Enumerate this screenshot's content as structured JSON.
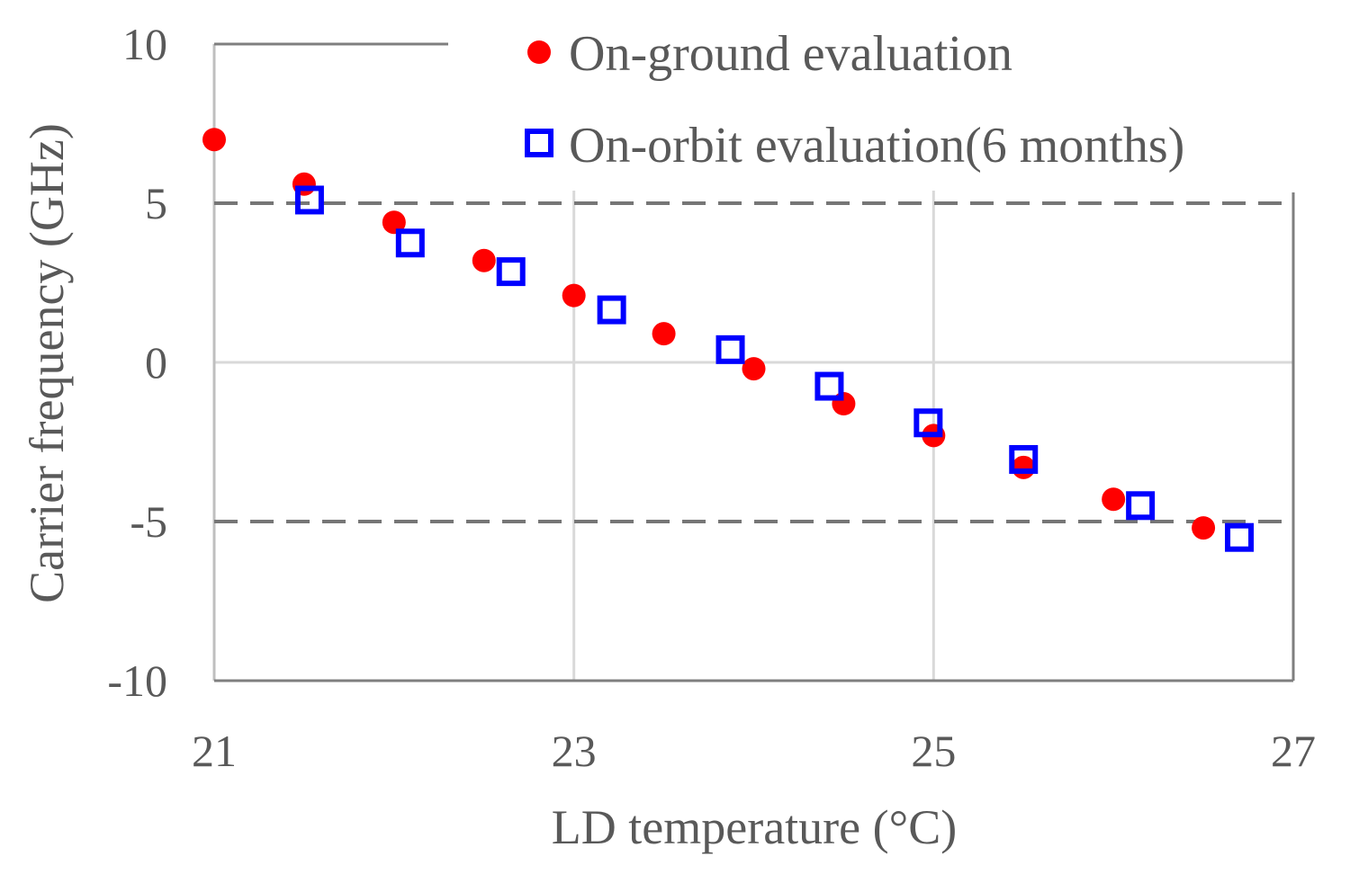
{
  "chart_data": {
    "type": "scatter",
    "title": "",
    "xlabel": "LD temperature (°C)",
    "ylabel": "Carrier frequency (GHz)",
    "xlim": [
      21,
      27
    ],
    "ylim": [
      -10,
      10
    ],
    "x_ticks": [
      "21",
      "23",
      "25",
      "27"
    ],
    "y_ticks": [
      "10",
      "5",
      "0",
      "-5",
      "-10"
    ],
    "x_tick_values": [
      21,
      23,
      25,
      27
    ],
    "y_tick_values": [
      10,
      5,
      0,
      -5,
      -10
    ],
    "x_gridlines": [
      21,
      23,
      25
    ],
    "y_gridlines": [
      0
    ],
    "reference_lines": [
      5,
      -5
    ],
    "legend_position": "top-right",
    "series": [
      {
        "name": "On-ground evaluation",
        "marker": "filled-circle",
        "color": "#ff0000",
        "x": [
          21.0,
          21.5,
          22.0,
          22.5,
          23.0,
          23.5,
          24.0,
          24.5,
          25.0,
          25.5,
          26.0,
          26.5
        ],
        "y": [
          7.0,
          5.6,
          4.4,
          3.2,
          2.1,
          0.9,
          -0.2,
          -1.3,
          -2.3,
          -3.3,
          -4.3,
          -5.2
        ]
      },
      {
        "name": "On-orbit evaluation(6 months)",
        "marker": "open-square",
        "color": "#0000ff",
        "x": [
          21.53,
          22.09,
          22.65,
          23.21,
          23.87,
          24.42,
          24.97,
          25.5,
          26.15,
          26.7
        ],
        "y": [
          5.1,
          3.75,
          2.85,
          1.65,
          0.4,
          -0.75,
          -1.9,
          -3.05,
          -4.5,
          -5.5
        ]
      }
    ]
  }
}
